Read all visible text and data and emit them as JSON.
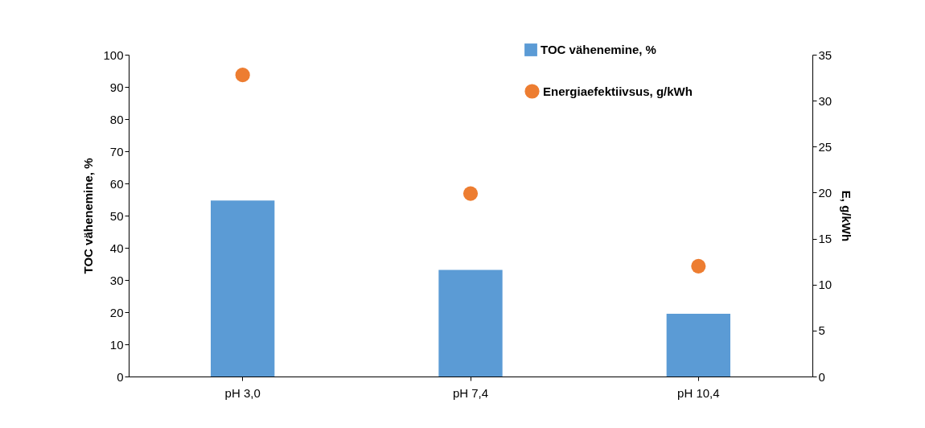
{
  "chart_data": {
    "type": "bar",
    "categories": [
      "pH 3,0",
      "pH 7,4",
      "pH 10,4"
    ],
    "ylabel": "TOC vähenemine, %",
    "y2label": "E, g/kWh",
    "ylim": [
      0,
      100
    ],
    "yticks": [
      0,
      10,
      20,
      30,
      40,
      50,
      60,
      70,
      80,
      90,
      100
    ],
    "y2lim": [
      0,
      35
    ],
    "y2ticks": [
      0,
      5,
      10,
      15,
      20,
      25,
      30,
      35
    ],
    "legend": "top right",
    "grid": false,
    "marker": "circle",
    "series": [
      {
        "name": "TOC vähenemine, %",
        "color": "#5b9bd5",
        "values": [
          54.7,
          33.1,
          19.5
        ]
      },
      {
        "name": "Energiaefektiivsus, g/kWh",
        "color": "#ed7d31",
        "values": [
          32.8,
          19.9,
          12.0
        ],
        "type": "scatter",
        "axis": "y2"
      }
    ]
  }
}
